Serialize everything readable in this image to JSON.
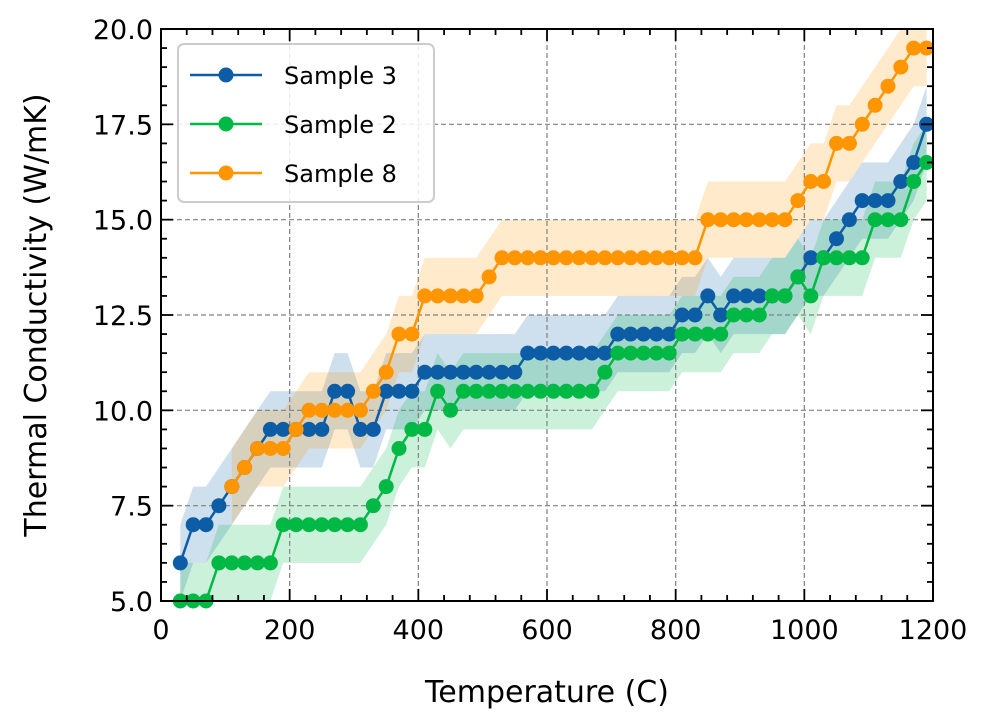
{
  "chart_data": {
    "type": "line",
    "title": "",
    "xlabel": "Temperature (C)",
    "ylabel": "Thermal Conductivity (W/mK)",
    "xlim": [
      0,
      1200
    ],
    "ylim": [
      5.0,
      20.0
    ],
    "xticks": [
      0,
      200,
      400,
      600,
      800,
      1000,
      1200
    ],
    "xtick_labels": [
      "0",
      "200",
      "400",
      "600",
      "800",
      "1000",
      "1200"
    ],
    "yticks": [
      5.0,
      7.5,
      10.0,
      12.5,
      15.0,
      17.5,
      20.0
    ],
    "ytick_labels": [
      "5.0",
      "7.5",
      "10.0",
      "12.5",
      "15.0",
      "17.5",
      "20.0"
    ],
    "grid": true,
    "legend_position": "top-left",
    "band_halfwidth": 1.0,
    "x": [
      30,
      50,
      70,
      90,
      110,
      130,
      150,
      170,
      190,
      210,
      230,
      250,
      270,
      290,
      310,
      330,
      350,
      370,
      390,
      410,
      430,
      450,
      470,
      490,
      510,
      530,
      550,
      570,
      590,
      610,
      630,
      650,
      670,
      690,
      710,
      730,
      750,
      770,
      790,
      810,
      830,
      850,
      870,
      890,
      910,
      930,
      950,
      970,
      990,
      1010,
      1030,
      1050,
      1070,
      1090,
      1110,
      1130,
      1150,
      1170,
      1190
    ],
    "series": [
      {
        "name": "Sample 3",
        "color": "#0C5DA5",
        "values": [
          6.0,
          7.0,
          7.0,
          7.5,
          8.0,
          8.5,
          9.0,
          9.5,
          9.5,
          9.5,
          9.5,
          9.5,
          10.5,
          10.5,
          9.5,
          9.5,
          10.5,
          10.5,
          10.5,
          11.0,
          11.0,
          11.0,
          11.0,
          11.0,
          11.0,
          11.0,
          11.0,
          11.5,
          11.5,
          11.5,
          11.5,
          11.5,
          11.5,
          11.5,
          12.0,
          12.0,
          12.0,
          12.0,
          12.0,
          12.5,
          12.5,
          13.0,
          12.5,
          13.0,
          13.0,
          13.0,
          13.0,
          13.0,
          13.5,
          14.0,
          14.0,
          14.5,
          15.0,
          15.5,
          15.5,
          15.5,
          16.0,
          16.5,
          17.5
        ]
      },
      {
        "name": "Sample 2",
        "color": "#00B945",
        "values": [
          5.0,
          5.0,
          5.0,
          6.0,
          6.0,
          6.0,
          6.0,
          6.0,
          7.0,
          7.0,
          7.0,
          7.0,
          7.0,
          7.0,
          7.0,
          7.5,
          8.0,
          9.0,
          9.5,
          9.5,
          10.5,
          10.0,
          10.5,
          10.5,
          10.5,
          10.5,
          10.5,
          10.5,
          10.5,
          10.5,
          10.5,
          10.5,
          10.5,
          11.0,
          11.5,
          11.5,
          11.5,
          11.5,
          11.5,
          12.0,
          12.0,
          12.0,
          12.0,
          12.5,
          12.5,
          12.5,
          13.0,
          13.0,
          13.5,
          13.0,
          14.0,
          14.0,
          14.0,
          14.0,
          15.0,
          15.0,
          15.0,
          16.0,
          16.5
        ]
      },
      {
        "name": "Sample 8",
        "color": "#FF9500",
        "values": [
          null,
          null,
          null,
          null,
          8.0,
          8.5,
          9.0,
          9.0,
          9.0,
          9.5,
          10.0,
          10.0,
          10.0,
          10.0,
          10.0,
          10.5,
          11.0,
          12.0,
          12.0,
          13.0,
          13.0,
          13.0,
          13.0,
          13.0,
          13.5,
          14.0,
          14.0,
          14.0,
          14.0,
          14.0,
          14.0,
          14.0,
          14.0,
          14.0,
          14.0,
          14.0,
          14.0,
          14.0,
          14.0,
          14.0,
          14.0,
          15.0,
          15.0,
          15.0,
          15.0,
          15.0,
          15.0,
          15.0,
          15.5,
          16.0,
          16.0,
          17.0,
          17.0,
          17.5,
          18.0,
          18.5,
          19.0,
          19.5,
          19.5
        ]
      }
    ]
  }
}
